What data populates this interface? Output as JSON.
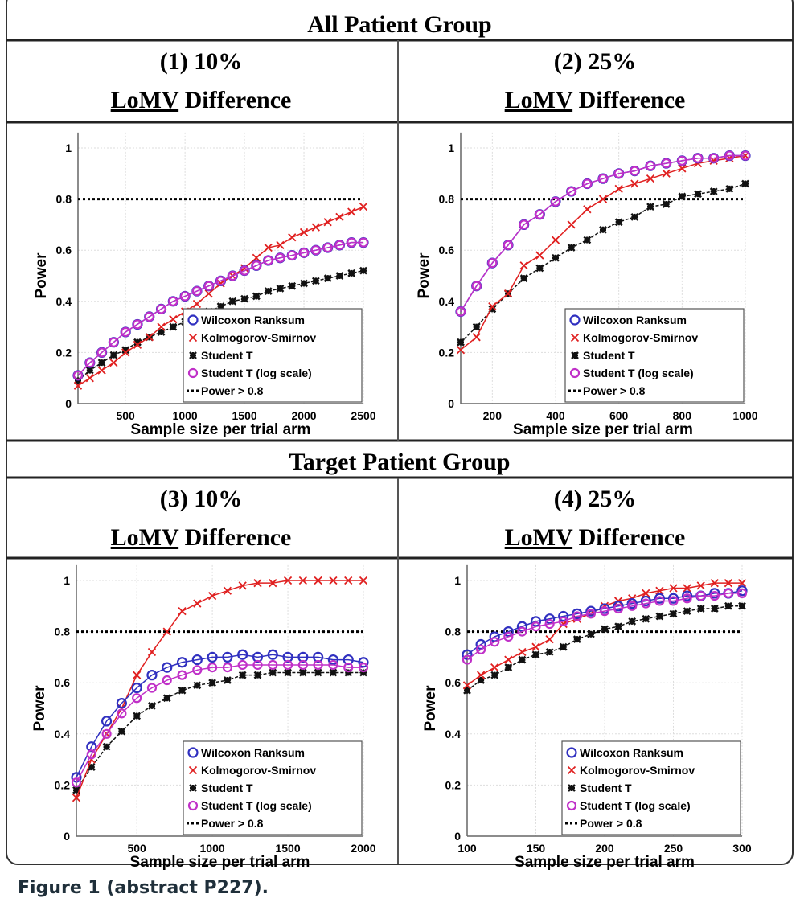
{
  "figure": {
    "section_titles": [
      "All Patient Group",
      "Target Patient Group"
    ],
    "caption": "Figure 1 (abstract P227).",
    "panel_headers": [
      {
        "line1": "(1)  10%",
        "line2_a": "LoMV",
        "line2_b": " Difference"
      },
      {
        "line1": "(2)  25%",
        "line2_a": "LoMV",
        "line2_b": " Difference"
      },
      {
        "line1": "(3)  10%",
        "line2_a": "LoMV",
        "line2_b": " Difference"
      },
      {
        "line1": "(4)  25%",
        "line2_a": "LoMV",
        "line2_b": " Difference"
      }
    ]
  },
  "colors": {
    "wilcoxon": "#3030c0",
    "ks": "#e02020",
    "student_t": "#111111",
    "student_t_log": "#c030c8",
    "threshold": "#000000"
  },
  "chart_data": [
    {
      "type": "line",
      "xlabel": "Sample size per trial arm",
      "ylabel": "Power",
      "xlim": [
        100,
        2500
      ],
      "ylim": [
        0,
        1.06
      ],
      "xticks": [
        500,
        1000,
        1500,
        2000,
        2500
      ],
      "yticks": [
        0,
        0.2,
        0.4,
        0.6,
        0.8,
        1
      ],
      "grid": true,
      "legend": "bottom-right",
      "x": [
        100,
        200,
        300,
        400,
        500,
        600,
        700,
        800,
        900,
        1000,
        1100,
        1200,
        1300,
        1400,
        1500,
        1600,
        1700,
        1800,
        1900,
        2000,
        2100,
        2200,
        2300,
        2400,
        2500
      ],
      "series": [
        {
          "name": "Wilcoxon Ranksum",
          "values": [
            0.11,
            0.16,
            0.2,
            0.24,
            0.28,
            0.31,
            0.34,
            0.37,
            0.4,
            0.42,
            0.44,
            0.46,
            0.48,
            0.5,
            0.52,
            0.54,
            0.56,
            0.57,
            0.58,
            0.59,
            0.6,
            0.61,
            0.62,
            0.63,
            0.63
          ]
        },
        {
          "name": "Kolmogorov-Smirnov",
          "values": [
            0.07,
            0.1,
            0.13,
            0.16,
            0.2,
            0.23,
            0.26,
            0.3,
            0.33,
            0.36,
            0.39,
            0.43,
            0.47,
            0.5,
            0.53,
            0.57,
            0.61,
            0.62,
            0.65,
            0.67,
            0.69,
            0.71,
            0.73,
            0.75,
            0.77
          ]
        },
        {
          "name": "Student T",
          "values": [
            0.09,
            0.13,
            0.16,
            0.19,
            0.21,
            0.24,
            0.26,
            0.28,
            0.3,
            0.32,
            0.34,
            0.36,
            0.38,
            0.4,
            0.41,
            0.42,
            0.44,
            0.45,
            0.46,
            0.47,
            0.48,
            0.49,
            0.5,
            0.51,
            0.52
          ]
        },
        {
          "name": "Student T (log scale)",
          "values": [
            0.11,
            0.16,
            0.2,
            0.24,
            0.28,
            0.31,
            0.34,
            0.37,
            0.4,
            0.42,
            0.44,
            0.46,
            0.48,
            0.5,
            0.52,
            0.54,
            0.56,
            0.57,
            0.58,
            0.59,
            0.6,
            0.61,
            0.62,
            0.63,
            0.63
          ]
        },
        {
          "name": "Power > 0.8",
          "constant": 0.8
        }
      ]
    },
    {
      "type": "line",
      "xlabel": "Sample size per trial arm",
      "ylabel": "Power",
      "xlim": [
        100,
        1000
      ],
      "ylim": [
        0,
        1.06
      ],
      "xticks": [
        200,
        400,
        600,
        800,
        1000
      ],
      "yticks": [
        0,
        0.2,
        0.4,
        0.6,
        0.8,
        1
      ],
      "grid": true,
      "legend": "bottom-right",
      "x": [
        100,
        150,
        200,
        250,
        300,
        350,
        400,
        450,
        500,
        550,
        600,
        650,
        700,
        750,
        800,
        850,
        900,
        950,
        1000
      ],
      "series": [
        {
          "name": "Wilcoxon Ranksum",
          "values": [
            0.36,
            0.46,
            0.55,
            0.62,
            0.7,
            0.74,
            0.79,
            0.83,
            0.86,
            0.88,
            0.9,
            0.91,
            0.93,
            0.94,
            0.95,
            0.96,
            0.96,
            0.97,
            0.97
          ]
        },
        {
          "name": "Kolmogorov-Smirnov",
          "values": [
            0.21,
            0.26,
            0.38,
            0.43,
            0.54,
            0.58,
            0.64,
            0.7,
            0.76,
            0.8,
            0.84,
            0.86,
            0.88,
            0.9,
            0.92,
            0.94,
            0.95,
            0.96,
            0.97
          ]
        },
        {
          "name": "Student T",
          "values": [
            0.24,
            0.3,
            0.37,
            0.43,
            0.49,
            0.53,
            0.57,
            0.61,
            0.64,
            0.68,
            0.71,
            0.73,
            0.77,
            0.78,
            0.81,
            0.82,
            0.83,
            0.84,
            0.86
          ]
        },
        {
          "name": "Student T (log scale)",
          "values": [
            0.36,
            0.46,
            0.55,
            0.62,
            0.7,
            0.74,
            0.79,
            0.83,
            0.86,
            0.88,
            0.9,
            0.91,
            0.93,
            0.94,
            0.95,
            0.96,
            0.96,
            0.97,
            0.97
          ]
        },
        {
          "name": "Power > 0.8",
          "constant": 0.8
        }
      ]
    },
    {
      "type": "line",
      "xlabel": "Sample size per trial arm",
      "ylabel": "Power",
      "xlim": [
        100,
        2000
      ],
      "ylim": [
        0,
        1.06
      ],
      "xticks": [
        500,
        1000,
        1500,
        2000
      ],
      "yticks": [
        0,
        0.2,
        0.4,
        0.6,
        0.8,
        1
      ],
      "grid": true,
      "legend": "bottom-right",
      "x": [
        100,
        200,
        300,
        400,
        500,
        600,
        700,
        800,
        900,
        1000,
        1100,
        1200,
        1300,
        1400,
        1500,
        1600,
        1700,
        1800,
        1900,
        2000
      ],
      "series": [
        {
          "name": "Wilcoxon Ranksum",
          "values": [
            0.23,
            0.35,
            0.45,
            0.52,
            0.58,
            0.63,
            0.66,
            0.68,
            0.69,
            0.7,
            0.7,
            0.71,
            0.7,
            0.71,
            0.7,
            0.7,
            0.7,
            0.69,
            0.69,
            0.68
          ]
        },
        {
          "name": "Kolmogorov-Smirnov",
          "values": [
            0.15,
            0.3,
            0.4,
            0.5,
            0.63,
            0.72,
            0.8,
            0.88,
            0.91,
            0.94,
            0.96,
            0.98,
            0.99,
            0.99,
            1.0,
            1.0,
            1.0,
            1.0,
            1.0,
            1.0
          ]
        },
        {
          "name": "Student T",
          "values": [
            0.18,
            0.27,
            0.35,
            0.41,
            0.47,
            0.51,
            0.54,
            0.57,
            0.59,
            0.6,
            0.61,
            0.63,
            0.63,
            0.64,
            0.64,
            0.64,
            0.64,
            0.64,
            0.64,
            0.64
          ]
        },
        {
          "name": "Student T (log scale)",
          "values": [
            0.21,
            0.32,
            0.4,
            0.48,
            0.54,
            0.58,
            0.61,
            0.63,
            0.65,
            0.66,
            0.66,
            0.67,
            0.67,
            0.67,
            0.67,
            0.67,
            0.67,
            0.67,
            0.66,
            0.66
          ]
        },
        {
          "name": "Power > 0.8",
          "constant": 0.8
        }
      ]
    },
    {
      "type": "line",
      "xlabel": "Sample size per trial arm",
      "ylabel": "Power",
      "xlim": [
        100,
        300
      ],
      "ylim": [
        0,
        1.06
      ],
      "xticks": [
        100,
        150,
        200,
        250,
        300
      ],
      "yticks": [
        0,
        0.2,
        0.4,
        0.6,
        0.8,
        1
      ],
      "grid": true,
      "legend": "bottom-right",
      "x": [
        100,
        110,
        120,
        130,
        140,
        150,
        160,
        170,
        180,
        190,
        200,
        210,
        220,
        230,
        240,
        250,
        260,
        270,
        280,
        290,
        300
      ],
      "series": [
        {
          "name": "Wilcoxon Ranksum",
          "values": [
            0.71,
            0.75,
            0.78,
            0.8,
            0.82,
            0.84,
            0.85,
            0.86,
            0.87,
            0.88,
            0.89,
            0.9,
            0.91,
            0.92,
            0.93,
            0.93,
            0.94,
            0.94,
            0.95,
            0.95,
            0.96
          ]
        },
        {
          "name": "Kolmogorov-Smirnov",
          "values": [
            0.59,
            0.63,
            0.66,
            0.69,
            0.72,
            0.74,
            0.77,
            0.83,
            0.85,
            0.87,
            0.9,
            0.92,
            0.93,
            0.95,
            0.96,
            0.97,
            0.97,
            0.98,
            0.99,
            0.99,
            0.99
          ]
        },
        {
          "name": "Student T",
          "values": [
            0.57,
            0.61,
            0.63,
            0.66,
            0.69,
            0.71,
            0.72,
            0.74,
            0.77,
            0.79,
            0.81,
            0.82,
            0.84,
            0.85,
            0.86,
            0.87,
            0.88,
            0.89,
            0.89,
            0.9,
            0.9
          ]
        },
        {
          "name": "Student T (log scale)",
          "values": [
            0.69,
            0.73,
            0.76,
            0.78,
            0.8,
            0.82,
            0.83,
            0.84,
            0.86,
            0.87,
            0.88,
            0.89,
            0.9,
            0.91,
            0.92,
            0.92,
            0.93,
            0.94,
            0.94,
            0.95,
            0.95
          ]
        },
        {
          "name": "Power > 0.8",
          "constant": 0.8
        }
      ]
    }
  ]
}
